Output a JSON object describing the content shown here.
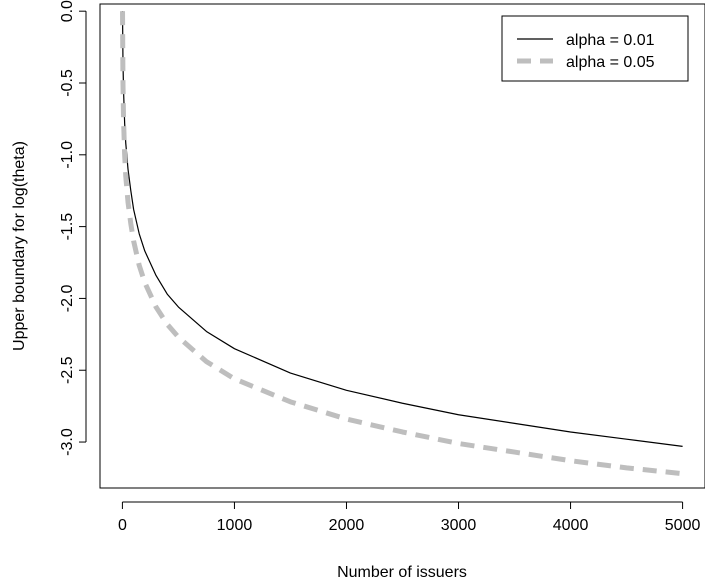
{
  "chart_data": {
    "type": "line",
    "title": "",
    "xlabel": "Number of issuers",
    "ylabel": "Upper boundary for log(theta)",
    "xlim": [
      -200,
      5200
    ],
    "ylim": [
      -3.32,
      0.05
    ],
    "x_ticks": [
      0,
      1000,
      2000,
      3000,
      4000,
      5000
    ],
    "x_tick_labels": [
      "0",
      "1000",
      "2000",
      "3000",
      "4000",
      "5000"
    ],
    "y_ticks": [
      0.0,
      -0.5,
      -1.0,
      -1.5,
      -2.0,
      -2.5,
      -3.0
    ],
    "y_tick_labels": [
      "0.0",
      "-0.5",
      "-1.0",
      "-1.5",
      "-2.0",
      "-2.5",
      "-3.0"
    ],
    "grid": false,
    "legend_position": "top-right",
    "series": [
      {
        "name": "alpha = 0.01",
        "color": "#000000",
        "style": "solid",
        "x": [
          1,
          5,
          10,
          20,
          30,
          50,
          75,
          100,
          150,
          200,
          300,
          400,
          500,
          750,
          1000,
          1500,
          2000,
          2500,
          3000,
          3500,
          4000,
          4500,
          5000
        ],
        "y": [
          0.0,
          -0.35,
          -0.55,
          -0.78,
          -0.92,
          -1.1,
          -1.25,
          -1.38,
          -1.55,
          -1.67,
          -1.84,
          -1.97,
          -2.06,
          -2.23,
          -2.35,
          -2.52,
          -2.64,
          -2.73,
          -2.81,
          -2.87,
          -2.93,
          -2.98,
          -3.03
        ]
      },
      {
        "name": "alpha = 0.05",
        "color": "#bebebe",
        "style": "dashed",
        "x": [
          1,
          5,
          10,
          20,
          30,
          50,
          75,
          100,
          150,
          200,
          300,
          400,
          500,
          750,
          1000,
          1500,
          2000,
          2500,
          3000,
          3500,
          4000,
          4500,
          5000
        ],
        "y": [
          0.0,
          -0.5,
          -0.75,
          -1.0,
          -1.15,
          -1.33,
          -1.48,
          -1.6,
          -1.77,
          -1.89,
          -2.06,
          -2.18,
          -2.27,
          -2.44,
          -2.56,
          -2.72,
          -2.84,
          -2.93,
          -3.01,
          -3.07,
          -3.13,
          -3.18,
          -3.22
        ]
      }
    ]
  }
}
